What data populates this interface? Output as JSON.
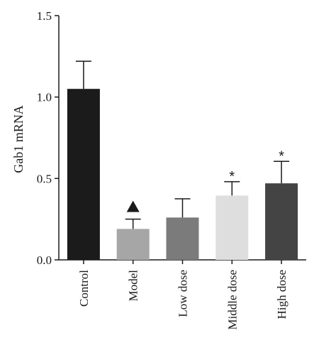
{
  "chart_data": {
    "type": "bar",
    "title": "",
    "xlabel": "",
    "ylabel": "Gab1 mRNA",
    "ylim": [
      0,
      1.5
    ],
    "yticks": [
      "0.0",
      "0.5",
      "1.0",
      "1.5"
    ],
    "ytick_values": [
      0,
      0.5,
      1.0,
      1.5
    ],
    "categories": [
      "Control",
      "Model",
      "Low dose",
      "Middle dose",
      "High dose"
    ],
    "values": [
      1.05,
      0.19,
      0.26,
      0.395,
      0.47
    ],
    "errors": [
      0.17,
      0.06,
      0.115,
      0.085,
      0.135
    ],
    "colors": [
      "#1b1b1b",
      "#a6a6a6",
      "#7b7b7b",
      "#dedede",
      "#444444"
    ],
    "annotations": [
      "",
      "▲",
      "",
      "*",
      "*"
    ],
    "grid": false,
    "legend": "none"
  }
}
